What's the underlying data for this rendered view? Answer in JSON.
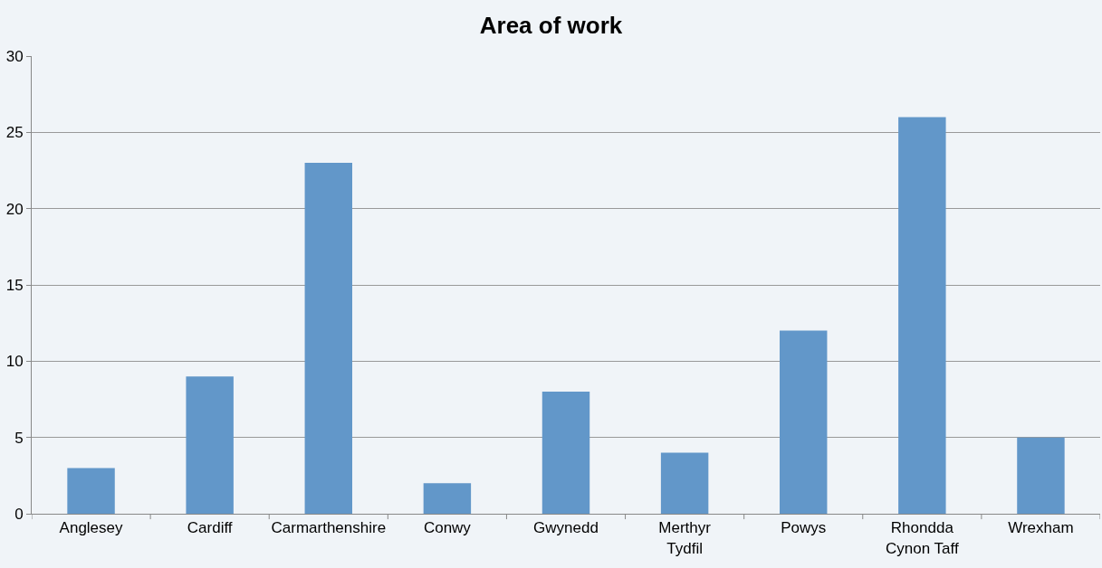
{
  "chart_data": {
    "type": "bar",
    "title": "Area of work",
    "categories": [
      "Anglesey",
      "Cardiff",
      "Carmarthenshire",
      "Conwy",
      "Gwynedd",
      "Merthyr Tydfil",
      "Powys",
      "Rhondda Cynon Taff",
      "Wrexham"
    ],
    "values": [
      3,
      9,
      23,
      2,
      8,
      4,
      12,
      26,
      5
    ],
    "color": "#6297c9",
    "ylim": [
      0,
      30
    ],
    "yticks": [
      0,
      5,
      10,
      15,
      20,
      25,
      30
    ],
    "grid": "y",
    "legend": false
  }
}
